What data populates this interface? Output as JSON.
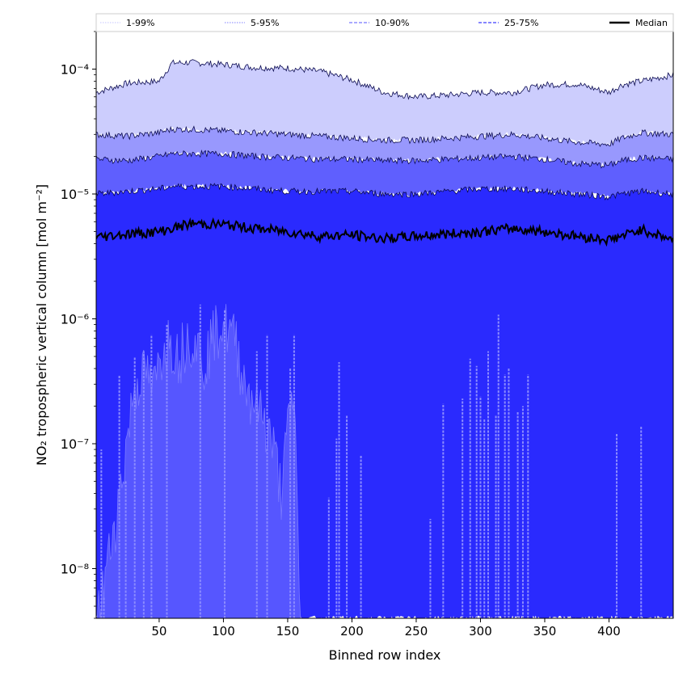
{
  "chart_data": {
    "type": "area",
    "xlabel": "Binned row index",
    "ylabel": "NO₂ tropospheric vertical column [mol m⁻²]",
    "xlim": [
      1,
      450
    ],
    "ylim": [
      4e-09,
      0.0002
    ],
    "yscale": "log",
    "x_ticks": [
      50,
      100,
      150,
      200,
      250,
      300,
      350,
      400
    ],
    "y_ticks": [
      {
        "value": 1e-08,
        "label": "10⁻⁸"
      },
      {
        "value": 1e-07,
        "label": "10⁻⁷"
      },
      {
        "value": 1e-06,
        "label": "10⁻⁶"
      },
      {
        "value": 1e-05,
        "label": "10⁻⁵"
      },
      {
        "value": 0.0001,
        "label": "10⁻⁴"
      }
    ],
    "legend": {
      "position": "top (full width)",
      "entries": [
        {
          "label": "1-99%",
          "color": "#d0d0ff",
          "style": "thin dotted"
        },
        {
          "label": "5-95%",
          "color": "#9a9aff",
          "style": "thin dotted"
        },
        {
          "label": "10-90%",
          "color": "#7777ff",
          "style": "dashed"
        },
        {
          "label": "25-75%",
          "color": "#3d3dff",
          "style": "dashed"
        },
        {
          "label": "Median",
          "color": "#000000",
          "style": "solid"
        }
      ]
    },
    "x_knots": [
      1,
      25,
      50,
      60,
      75,
      100,
      125,
      150,
      175,
      200,
      225,
      250,
      275,
      300,
      325,
      350,
      375,
      400,
      410,
      425,
      450
    ],
    "percentile_bands": [
      {
        "name": "1-99%",
        "fill": "#cccdfd",
        "upper": [
          6.5e-05,
          7.7e-05,
          8e-05,
          0.000112,
          0.000113,
          0.000109,
          0.000103,
          0.000102,
          9.6e-05,
          8.2e-05,
          6.5e-05,
          6e-05,
          6.2e-05,
          6.5e-05,
          6.5e-05,
          7.5e-05,
          7.6e-05,
          6.5e-05,
          7.5e-05,
          8e-05,
          9e-05
        ],
        "lower": [
          3e-05,
          2.9e-05,
          3.1e-05,
          3.3e-05,
          3.3e-05,
          3.2e-05,
          3.1e-05,
          3e-05,
          2.9e-05,
          2.8e-05,
          2.7e-05,
          2.7e-05,
          2.8e-05,
          2.9e-05,
          3e-05,
          2.8e-05,
          2.6e-05,
          2.5e-05,
          2.8e-05,
          3.1e-05,
          3e-05
        ]
      },
      {
        "name": "5-95%",
        "fill": "#9898fd",
        "upper": [
          3e-05,
          2.9e-05,
          3.1e-05,
          3.3e-05,
          3.3e-05,
          3.2e-05,
          3.1e-05,
          3e-05,
          2.9e-05,
          2.8e-05,
          2.7e-05,
          2.7e-05,
          2.8e-05,
          2.9e-05,
          3e-05,
          2.8e-05,
          2.6e-05,
          2.5e-05,
          2.8e-05,
          3.1e-05,
          3e-05
        ],
        "lower": [
          1.9e-05,
          1.85e-05,
          2e-05,
          2.1e-05,
          2.1e-05,
          2.1e-05,
          2e-05,
          1.95e-05,
          1.9e-05,
          1.9e-05,
          1.85e-05,
          1.85e-05,
          1.9e-05,
          1.95e-05,
          2e-05,
          1.9e-05,
          1.75e-05,
          1.7e-05,
          1.85e-05,
          1.95e-05,
          1.9e-05
        ]
      },
      {
        "name": "10-90%",
        "fill": "#5f5ffe",
        "upper": [
          1.9e-05,
          1.85e-05,
          2e-05,
          2.1e-05,
          2.1e-05,
          2.1e-05,
          2e-05,
          1.95e-05,
          1.9e-05,
          1.9e-05,
          1.85e-05,
          1.85e-05,
          1.9e-05,
          1.95e-05,
          2e-05,
          1.9e-05,
          1.75e-05,
          1.7e-05,
          1.85e-05,
          1.95e-05,
          1.9e-05
        ],
        "lower": [
          1e-05,
          1.05e-05,
          1.1e-05,
          1.15e-05,
          1.15e-05,
          1.15e-05,
          1.1e-05,
          1.05e-05,
          1.05e-05,
          1.05e-05,
          1e-05,
          1e-05,
          1.05e-05,
          1.1e-05,
          1.1e-05,
          1.05e-05,
          1e-05,
          9.5e-06,
          1e-05,
          1.05e-05,
          1e-05
        ]
      },
      {
        "name": "25-75%",
        "fill": "#2a2afe",
        "upper": [
          1e-05,
          1.05e-05,
          1.1e-05,
          1.15e-05,
          1.15e-05,
          1.15e-05,
          1.1e-05,
          1.05e-05,
          1.05e-05,
          1.05e-05,
          1e-05,
          1e-05,
          1.05e-05,
          1.1e-05,
          1.1e-05,
          1.05e-05,
          1e-05,
          9.5e-06,
          1e-05,
          1.05e-05,
          1e-05
        ],
        "lower": [
          4e-09,
          4e-09,
          4e-09,
          4e-09,
          4e-09,
          4e-09,
          4e-09,
          4e-09,
          4e-09,
          4e-09,
          4e-09,
          4e-09,
          4e-09,
          4e-09,
          4e-09,
          4e-09,
          4e-09,
          4e-09,
          4e-09,
          4e-09,
          4e-09
        ]
      }
    ],
    "median": [
      4.5e-06,
      4.8e-06,
      5e-06,
      5.3e-06,
      5.8e-06,
      5.7e-06,
      5.3e-06,
      5e-06,
      4.6e-06,
      4.7e-06,
      4.4e-06,
      4.6e-06,
      4.8e-06,
      5e-06,
      5.3e-06,
      5e-06,
      4.6e-06,
      4.3e-06,
      4.6e-06,
      5.2e-06,
      4.3e-06
    ],
    "low_tail_envelope": {
      "fill": "#5656ff",
      "x": [
        1,
        20,
        30,
        35,
        40,
        45,
        50,
        55,
        60,
        65,
        70,
        75,
        80,
        85,
        90,
        95,
        100,
        105,
        110,
        115,
        120,
        125,
        130,
        135,
        140,
        145,
        150,
        155,
        160
      ],
      "y": [
        4e-09,
        5e-08,
        3e-07,
        4e-07,
        4.5e-07,
        3e-07,
        5e-07,
        8e-07,
        8e-07,
        6e-07,
        8e-07,
        9e-07,
        7e-07,
        5e-07,
        8e-07,
        1e-06,
        1.1e-06,
        9e-07,
        8e-07,
        4e-07,
        3e-07,
        2.5e-07,
        2e-07,
        1.5e-07,
        1e-07,
        5e-08,
        1.5e-07,
        3e-07,
        4e-09
      ]
    },
    "low_tail_spikes": [
      {
        "x": 5,
        "y": 9e-08
      },
      {
        "x": 7,
        "y": 6e-09
      },
      {
        "x": 19,
        "y": 3.5e-07
      },
      {
        "x": 24,
        "y": 5e-08
      },
      {
        "x": 31,
        "y": 5e-07
      },
      {
        "x": 38,
        "y": 5.5e-07
      },
      {
        "x": 44,
        "y": 7.5e-07
      },
      {
        "x": 56,
        "y": 9e-07
      },
      {
        "x": 82,
        "y": 1.3e-06
      },
      {
        "x": 101,
        "y": 1.2e-06
      },
      {
        "x": 126,
        "y": 5.5e-07
      },
      {
        "x": 134,
        "y": 7.5e-07
      },
      {
        "x": 152,
        "y": 4e-07
      },
      {
        "x": 155,
        "y": 7.5e-07
      },
      {
        "x": 182,
        "y": 3.7e-08
      },
      {
        "x": 188,
        "y": 1.1e-07
      },
      {
        "x": 190,
        "y": 4.5e-07
      },
      {
        "x": 196,
        "y": 1.7e-07
      },
      {
        "x": 207,
        "y": 8e-08
      },
      {
        "x": 261,
        "y": 2.5e-08
      },
      {
        "x": 271,
        "y": 2.1e-07
      },
      {
        "x": 286,
        "y": 2.3e-07
      },
      {
        "x": 292,
        "y": 4.8e-07
      },
      {
        "x": 297,
        "y": 4.2e-07
      },
      {
        "x": 300,
        "y": 2.4e-07
      },
      {
        "x": 303,
        "y": 1.6e-07
      },
      {
        "x": 306,
        "y": 5.5e-07
      },
      {
        "x": 312,
        "y": 1.7e-07
      },
      {
        "x": 314,
        "y": 1.08e-06
      },
      {
        "x": 319,
        "y": 3.6e-07
      },
      {
        "x": 322,
        "y": 4e-07
      },
      {
        "x": 329,
        "y": 1.8e-07
      },
      {
        "x": 333,
        "y": 2e-07
      },
      {
        "x": 337,
        "y": 3.6e-07
      },
      {
        "x": 406,
        "y": 1.2e-07
      },
      {
        "x": 425,
        "y": 1.4e-07
      }
    ]
  }
}
